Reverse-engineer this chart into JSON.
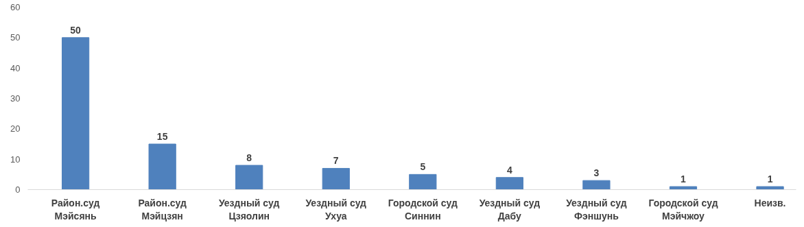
{
  "chart_data": {
    "type": "bar",
    "categories": [
      "Район.суд\nМэйсянь",
      "Район.суд\nМэйцзян",
      "Уездный суд\nЦзяолин",
      "Уездный суд\nУхуа",
      "Городской суд\nСиннин",
      "Уездный суд\nДабу",
      "Уездный суд\nФэншунь",
      "Городской суд\nМэйчжоу",
      "Неизв."
    ],
    "values": [
      50,
      15,
      8,
      7,
      5,
      4,
      3,
      1,
      1
    ],
    "color": "#4f81bd",
    "ylim": [
      0,
      60
    ],
    "yticks": [
      0,
      10,
      20,
      30,
      40,
      50,
      60
    ],
    "grid": false,
    "data_labels": true
  }
}
